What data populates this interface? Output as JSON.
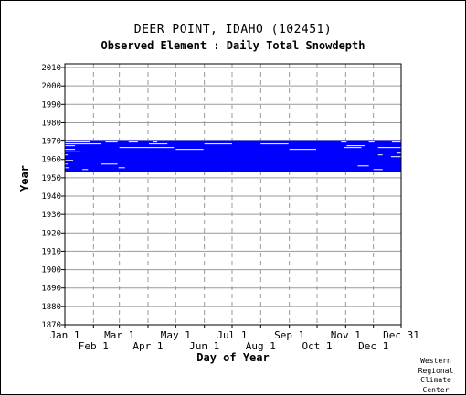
{
  "chart_data": {
    "type": "heatmap",
    "title": "DEER POINT, IDAHO   (102451)",
    "subtitle": "Observed Element : Daily Total Snowdepth",
    "xlabel": "Day of Year",
    "ylabel": "Year",
    "credit": "Western\nRegional\nClimate\nCenter",
    "xlim": [
      1,
      365
    ],
    "ylim": [
      1870,
      2012
    ],
    "grid": true,
    "data_color": "#0000ff",
    "yticks": [
      1870,
      1880,
      1890,
      1900,
      1910,
      1920,
      1930,
      1940,
      1950,
      1960,
      1970,
      1980,
      1990,
      2000,
      2010
    ],
    "xticks_top_row": [
      {
        "label": "Jan 1",
        "day": 1
      },
      {
        "label": "Mar 1",
        "day": 60
      },
      {
        "label": "May 1",
        "day": 121
      },
      {
        "label": "Jul 1",
        "day": 182
      },
      {
        "label": "Sep 1",
        "day": 244
      },
      {
        "label": "Nov 1",
        "day": 305
      },
      {
        "label": "Dec 31",
        "day": 365
      }
    ],
    "xticks_bottom_row": [
      {
        "label": "Feb 1",
        "day": 32
      },
      {
        "label": "Apr 1",
        "day": 91
      },
      {
        "label": "Jun 1",
        "day": 152
      },
      {
        "label": "Aug 1",
        "day": 213
      },
      {
        "label": "Oct 1",
        "day": 274
      },
      {
        "label": "Dec 1",
        "day": 335
      }
    ],
    "observed_period": {
      "start_year": 1953,
      "end_year": 1969,
      "start_day": 1,
      "end_day": 365
    },
    "missing_segments": [
      {
        "year": 1969,
        "start_day": 1,
        "end_day": 28
      },
      {
        "year": 1969,
        "start_day": 45,
        "end_day": 58
      },
      {
        "year": 1969,
        "start_day": 70,
        "end_day": 80
      },
      {
        "year": 1969,
        "start_day": 96,
        "end_day": 101
      },
      {
        "year": 1969,
        "start_day": 300,
        "end_day": 306
      },
      {
        "year": 1969,
        "start_day": 330,
        "end_day": 336
      },
      {
        "year": 1969,
        "start_day": 355,
        "end_day": 365
      },
      {
        "year": 1968,
        "start_day": 1,
        "end_day": 40
      },
      {
        "year": 1968,
        "start_day": 92,
        "end_day": 112
      },
      {
        "year": 1968,
        "start_day": 152,
        "end_day": 182
      },
      {
        "year": 1968,
        "start_day": 213,
        "end_day": 243
      },
      {
        "year": 1967,
        "start_day": 1,
        "end_day": 12
      },
      {
        "year": 1967,
        "start_day": 306,
        "end_day": 326
      },
      {
        "year": 1966,
        "start_day": 60,
        "end_day": 119
      },
      {
        "year": 1966,
        "start_day": 303,
        "end_day": 322
      },
      {
        "year": 1966,
        "start_day": 340,
        "end_day": 365
      },
      {
        "year": 1965,
        "start_day": 1,
        "end_day": 12
      },
      {
        "year": 1965,
        "start_day": 121,
        "end_day": 151
      },
      {
        "year": 1965,
        "start_day": 244,
        "end_day": 273
      },
      {
        "year": 1964,
        "start_day": 1,
        "end_day": 18
      },
      {
        "year": 1963,
        "start_day": 360,
        "end_day": 365
      },
      {
        "year": 1962,
        "start_day": 1,
        "end_day": 4
      },
      {
        "year": 1962,
        "start_day": 340,
        "end_day": 345
      },
      {
        "year": 1961,
        "start_day": 354,
        "end_day": 365
      },
      {
        "year": 1959,
        "start_day": 1,
        "end_day": 10
      },
      {
        "year": 1957,
        "start_day": 1,
        "end_day": 4
      },
      {
        "year": 1957,
        "start_day": 40,
        "end_day": 58
      },
      {
        "year": 1956,
        "start_day": 318,
        "end_day": 330
      },
      {
        "year": 1955,
        "start_day": 1,
        "end_day": 6
      },
      {
        "year": 1955,
        "start_day": 59,
        "end_day": 66
      },
      {
        "year": 1954,
        "start_day": 20,
        "end_day": 26
      },
      {
        "year": 1954,
        "start_day": 335,
        "end_day": 345
      }
    ]
  }
}
